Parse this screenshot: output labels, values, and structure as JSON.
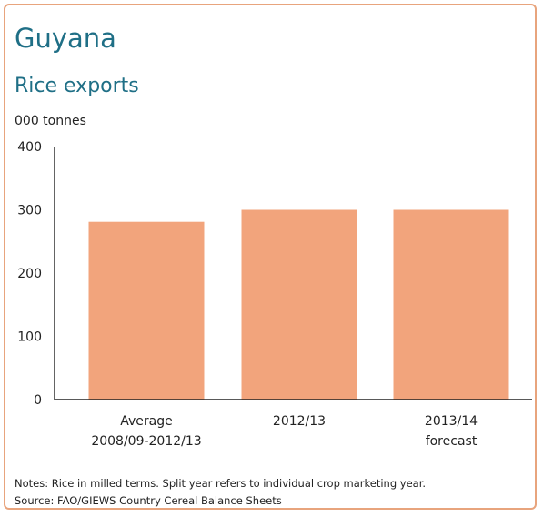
{
  "header": {
    "title": "Guyana",
    "subtitle": "Rice exports",
    "unit": "000 tonnes"
  },
  "footer": {
    "notes": "Notes: Rice in milled terms. Split year refers to individual crop marketing year.",
    "source": "Source: FAO/GIEWS Country Cereal Balance Sheets"
  },
  "colors": {
    "bar": "#f2a47c",
    "title": "#1f6f86",
    "frame": "#e8a47d",
    "axis": "#222222"
  },
  "chart_data": {
    "type": "bar",
    "title": "Guyana",
    "subtitle": "Rice exports",
    "ylabel": "000 tonnes",
    "xlabel": "",
    "categories": [
      [
        "Average",
        "2008/09-2012/13"
      ],
      [
        "2012/13"
      ],
      [
        "2013/14",
        "forecast"
      ]
    ],
    "values": [
      281,
      300,
      300
    ],
    "ylim": [
      0,
      400
    ],
    "yticks": [
      0,
      100,
      200,
      300,
      400
    ],
    "grid": false,
    "legend": "none"
  }
}
